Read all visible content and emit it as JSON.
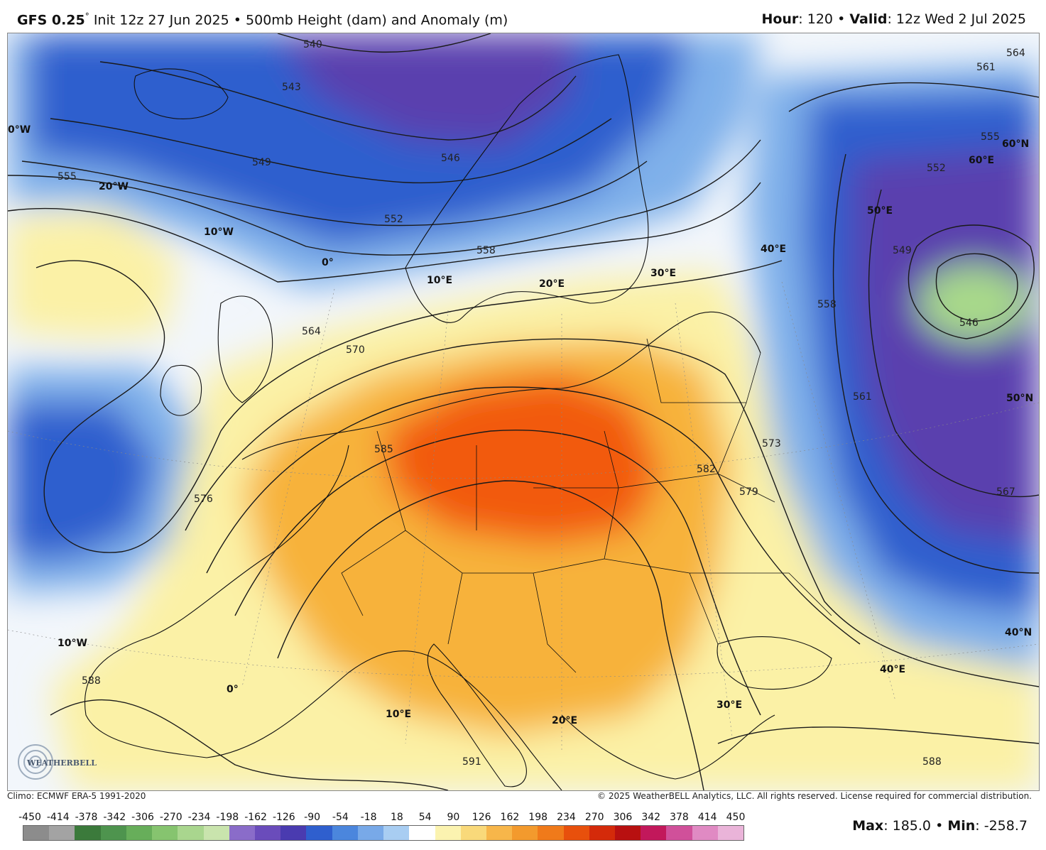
{
  "header": {
    "model": "GFS 0.25",
    "degree_mark": "°",
    "init": "Init 12z 27 Jun 2025",
    "separator": "•",
    "field": "500mb Height (dam) and Anomaly (m)",
    "hour_label": "Hour",
    "hour_value": ": 120",
    "valid_label": "Valid",
    "valid_value": ": 12z Wed 2 Jul 2025"
  },
  "map": {
    "longitude_labels": [
      "0°W",
      "20°W",
      "10°W",
      "0°",
      "10°E",
      "20°E",
      "30°E",
      "40°E",
      "50°E",
      "60°E",
      "10°W",
      "0°",
      "10°E",
      "20°E",
      "30°E",
      "40°E"
    ],
    "latitude_labels": [
      "60°N",
      "50°N",
      "40°N"
    ],
    "contour_labels": [
      "540",
      "543",
      "546",
      "549",
      "552",
      "555",
      "558",
      "564",
      "570",
      "576",
      "579",
      "573",
      "582",
      "585",
      "588",
      "591",
      "561",
      "564",
      "555",
      "552",
      "549",
      "546",
      "558",
      "561",
      "567",
      "588"
    ],
    "colors": {
      "neg_strong": "#5a3fae",
      "neg_mid": "#2f5fce",
      "neg_weak": "#7fb0ea",
      "neutral": "#f2f6fb",
      "pos_weak": "#fbf1a6",
      "pos_mid": "#f7b23a",
      "pos_strong": "#f25a0a",
      "green_core": "#a8d98a"
    }
  },
  "logo_text": "WEATHERBELL",
  "footer": {
    "climo": "Climo: ECMWF ERA-5 1991-2020",
    "copyright": "© 2025 WeatherBELL Analytics, LLC. All rights reserved. License required for commercial distribution."
  },
  "scale": {
    "ticks": [
      "-450",
      "-414",
      "-378",
      "-342",
      "-306",
      "-270",
      "-234",
      "-198",
      "-162",
      "-126",
      "-90",
      "-54",
      "-18",
      "18",
      "54",
      "90",
      "126",
      "162",
      "198",
      "234",
      "270",
      "306",
      "342",
      "378",
      "414",
      "450"
    ],
    "colors": [
      "#8c8c8c",
      "#a3a3a3",
      "#3b7a3b",
      "#4e944e",
      "#67ae5a",
      "#86c46f",
      "#a9d68e",
      "#c9e4ad",
      "#8a6cc9",
      "#6a4cbb",
      "#4a3bb0",
      "#2f5fce",
      "#4b86dd",
      "#78a9e8",
      "#a8cdf2",
      "#ffffff",
      "#fbf3b0",
      "#f9d97a",
      "#f7b64a",
      "#f39a2d",
      "#f07a1a",
      "#e8500c",
      "#d42a0a",
      "#b81010",
      "#c2185b",
      "#d0509a",
      "#e08ac3",
      "#eab4d9"
    ]
  },
  "stats": {
    "max_label": "Max",
    "max_value": ": 185.0",
    "sep": "•",
    "min_label": "Min",
    "min_value": ": -258.7"
  }
}
